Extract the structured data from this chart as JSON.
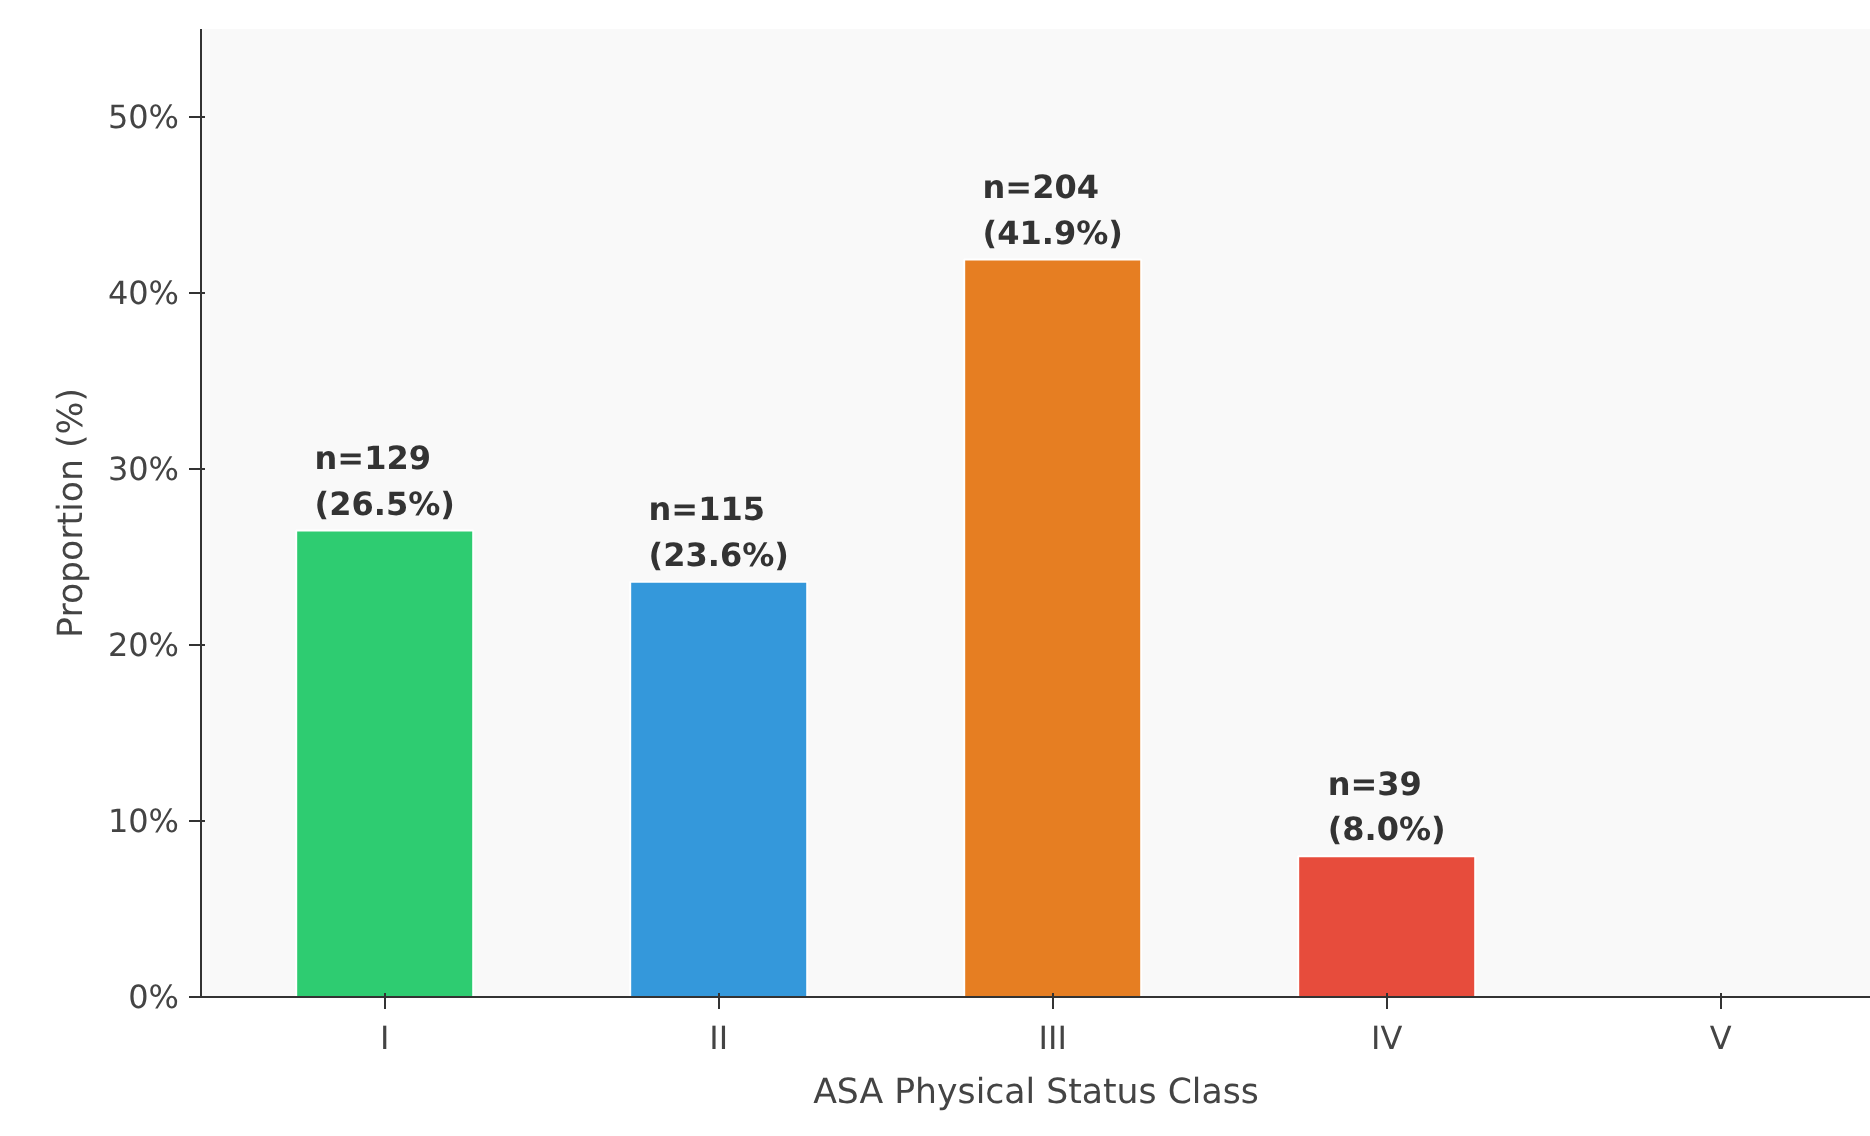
{
  "chart_data": {
    "type": "bar",
    "xlabel": "ASA Physical Status Class",
    "ylabel": "Proportion (%)",
    "categories": [
      "I",
      "II",
      "III",
      "IV",
      "V"
    ],
    "values": [
      26.5,
      23.6,
      41.9,
      8.0,
      null
    ],
    "colors": [
      "#2ecc71",
      "#3498db",
      "#e67e22",
      "#e74c3c",
      null
    ],
    "value_labels": [
      "n=129\n(26.5%)",
      "n=115\n(23.6%)",
      "n=204\n(41.9%)",
      "n=39\n(8.0%)",
      null
    ],
    "ylim": [
      0,
      55
    ],
    "yticks": [
      {
        "value": 0,
        "label": "0%"
      },
      {
        "value": 10,
        "label": "10%"
      },
      {
        "value": 20,
        "label": "20%"
      },
      {
        "value": 30,
        "label": "30%"
      },
      {
        "value": 40,
        "label": "40%"
      },
      {
        "value": 50,
        "label": "50%"
      }
    ],
    "grid": false
  }
}
